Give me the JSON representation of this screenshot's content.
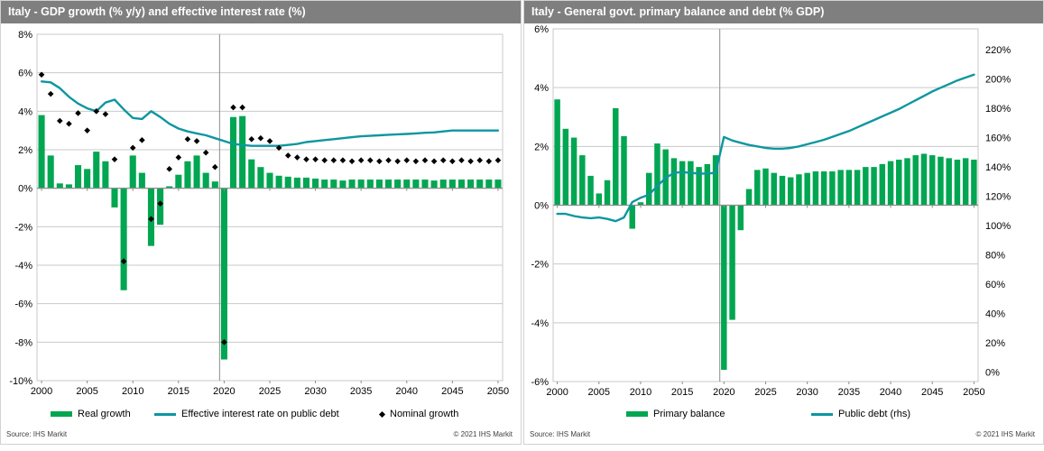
{
  "panels": [
    {
      "title": "Italy - GDP growth (% y/y) and effective interest rate (%)",
      "source": "Source:  IHS Markit",
      "copyright": "© 2021  IHS Markit"
    },
    {
      "title": "Italy - General govt. primary balance and debt (% GDP)",
      "source": "Source:  IHS Markit",
      "copyright": "© 2021  IHS Markit"
    }
  ],
  "chart_data": [
    {
      "type": "bar",
      "subtype": "combo-bar-line-scatter",
      "title": "Italy - GDP growth (% y/y) and effective interest rate (%)",
      "xlabel": "",
      "ylabel": "",
      "ylim": [
        -10,
        8
      ],
      "ytick_step": 2,
      "ytick_suffix": "%",
      "grid": "horizontal",
      "divider_before_year": 2020,
      "xticks": [
        2000,
        2005,
        2010,
        2015,
        2020,
        2025,
        2030,
        2035,
        2040,
        2045,
        2050
      ],
      "years": [
        2000,
        2001,
        2002,
        2003,
        2004,
        2005,
        2006,
        2007,
        2008,
        2009,
        2010,
        2011,
        2012,
        2013,
        2014,
        2015,
        2016,
        2017,
        2018,
        2019,
        2020,
        2021,
        2022,
        2023,
        2024,
        2025,
        2026,
        2027,
        2028,
        2029,
        2030,
        2031,
        2032,
        2033,
        2034,
        2035,
        2036,
        2037,
        2038,
        2039,
        2040,
        2041,
        2042,
        2043,
        2044,
        2045,
        2046,
        2047,
        2048,
        2049,
        2050
      ],
      "series": [
        {
          "name": "Real growth",
          "type": "bar",
          "color": "#00A651",
          "values": [
            3.8,
            1.7,
            0.25,
            0.2,
            1.2,
            1.0,
            1.9,
            1.4,
            -1.0,
            -5.3,
            1.7,
            0.8,
            -3.0,
            -1.9,
            0.1,
            0.7,
            1.4,
            1.7,
            0.8,
            0.35,
            -8.9,
            3.7,
            3.75,
            1.5,
            1.1,
            0.8,
            0.65,
            0.6,
            0.55,
            0.55,
            0.5,
            0.45,
            0.45,
            0.4,
            0.45,
            0.45,
            0.45,
            0.45,
            0.45,
            0.45,
            0.45,
            0.45,
            0.45,
            0.4,
            0.45,
            0.45,
            0.45,
            0.45,
            0.45,
            0.45,
            0.45
          ]
        },
        {
          "name": "Effective interest rate on public debt",
          "type": "line",
          "color": "#0E96A0",
          "values": [
            5.55,
            5.5,
            5.2,
            4.75,
            4.4,
            4.15,
            4.0,
            4.45,
            4.6,
            4.1,
            3.65,
            3.6,
            4.0,
            3.7,
            3.35,
            3.1,
            2.95,
            2.85,
            2.75,
            2.6,
            2.45,
            2.3,
            2.25,
            2.2,
            2.2,
            2.2,
            2.2,
            2.25,
            2.3,
            2.4,
            2.45,
            2.5,
            2.55,
            2.6,
            2.65,
            2.7,
            2.72,
            2.75,
            2.78,
            2.8,
            2.82,
            2.85,
            2.88,
            2.9,
            2.95,
            3.0,
            3.0,
            3.0,
            3.0,
            3.0,
            3.0
          ]
        },
        {
          "name": "Nominal growth",
          "type": "scatter",
          "color": "#000000",
          "values": [
            5.9,
            4.9,
            3.5,
            3.35,
            3.9,
            3.0,
            4.0,
            3.85,
            1.5,
            -3.8,
            2.1,
            2.5,
            -1.6,
            -0.8,
            1.0,
            1.6,
            2.55,
            2.45,
            1.85,
            1.1,
            -8.0,
            4.2,
            4.2,
            2.55,
            2.6,
            2.45,
            2.1,
            1.7,
            1.6,
            1.5,
            1.5,
            1.45,
            1.45,
            1.45,
            1.4,
            1.45,
            1.45,
            1.4,
            1.45,
            1.4,
            1.45,
            1.4,
            1.45,
            1.4,
            1.45,
            1.4,
            1.45,
            1.4,
            1.45,
            1.4,
            1.45
          ]
        }
      ],
      "legend_position": "bottom"
    },
    {
      "type": "bar",
      "subtype": "combo-bar-line-dual-axis",
      "title": "Italy - General govt. primary balance and debt (% GDP)",
      "xlabel": "",
      "ylabel": "",
      "ylim_left": [
        -6,
        6
      ],
      "ytick_step_left": 2,
      "ylim_right": [
        0,
        220
      ],
      "ytick_step_right": 20,
      "ytick_suffix": "%",
      "grid": "horizontal",
      "divider_before_year": 2020,
      "xticks": [
        2000,
        2005,
        2010,
        2015,
        2020,
        2025,
        2030,
        2035,
        2040,
        2045,
        2050
      ],
      "years": [
        2000,
        2001,
        2002,
        2003,
        2004,
        2005,
        2006,
        2007,
        2008,
        2009,
        2010,
        2011,
        2012,
        2013,
        2014,
        2015,
        2016,
        2017,
        2018,
        2019,
        2020,
        2021,
        2022,
        2023,
        2024,
        2025,
        2026,
        2027,
        2028,
        2029,
        2030,
        2031,
        2032,
        2033,
        2034,
        2035,
        2036,
        2037,
        2038,
        2039,
        2040,
        2041,
        2042,
        2043,
        2044,
        2045,
        2046,
        2047,
        2048,
        2049,
        2050
      ],
      "series": [
        {
          "name": "Primary balance",
          "type": "bar",
          "axis": "left",
          "color": "#00A651",
          "values": [
            3.6,
            2.6,
            2.3,
            1.7,
            1.0,
            0.4,
            0.85,
            3.3,
            2.35,
            -0.8,
            0.1,
            1.1,
            2.1,
            1.9,
            1.6,
            1.5,
            1.5,
            1.3,
            1.4,
            1.7,
            -5.6,
            -3.9,
            -0.85,
            0.55,
            1.2,
            1.25,
            1.1,
            1.0,
            0.95,
            1.05,
            1.1,
            1.15,
            1.15,
            1.15,
            1.2,
            1.2,
            1.2,
            1.3,
            1.3,
            1.4,
            1.5,
            1.55,
            1.6,
            1.7,
            1.75,
            1.7,
            1.65,
            1.6,
            1.55,
            1.6,
            1.55
          ]
        },
        {
          "name": "Public debt (rhs)",
          "type": "line",
          "axis": "right",
          "color": "#0E96A0",
          "values": [
            108,
            108,
            106.5,
            105.5,
            105,
            105.5,
            104.5,
            103,
            105.5,
            116,
            119,
            121,
            127,
            132.5,
            136,
            136.5,
            136,
            135.5,
            135.5,
            136,
            160.5,
            158,
            156.5,
            155,
            154,
            153,
            152.5,
            152.5,
            153,
            154,
            155.5,
            157,
            158.5,
            160.5,
            162.5,
            164.5,
            167,
            169.5,
            172,
            174.5,
            177,
            179.5,
            182.5,
            185.5,
            188.5,
            191.5,
            194,
            196.5,
            199,
            201,
            203
          ]
        }
      ],
      "legend_position": "bottom"
    }
  ],
  "colors": {
    "bar_green": "#00A651",
    "line_teal": "#0E96A0",
    "scatter_black": "#000000",
    "titlebar_gray": "#7F7F7F",
    "gridline": "#C9C9C9",
    "zero_axis": "#8C8C8C"
  }
}
